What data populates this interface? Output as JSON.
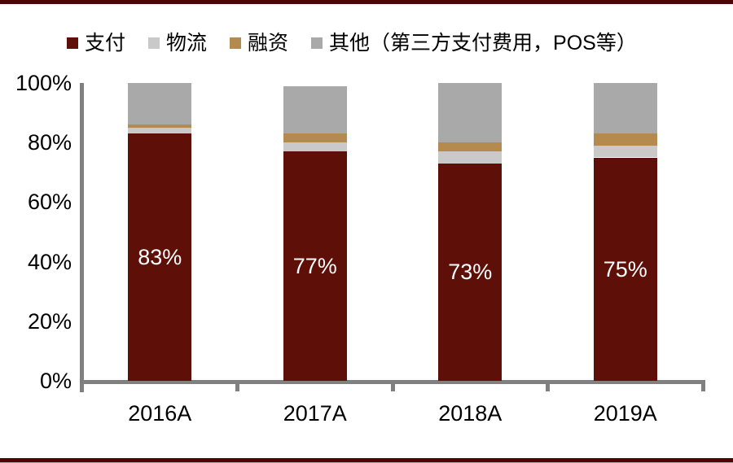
{
  "legend": {
    "items": [
      {
        "label": "支付",
        "color": "#5E0F08"
      },
      {
        "label": "物流",
        "color": "#C9C9C9"
      },
      {
        "label": "融资",
        "color": "#B48A4E"
      },
      {
        "label": "其他（第三方支付费用，POS等）",
        "color": "#A9A9A9"
      }
    ]
  },
  "chart_data": {
    "type": "bar",
    "subtype": "stacked-100-percent",
    "title": "",
    "xlabel": "",
    "ylabel": "",
    "categories": [
      "2016A",
      "2017A",
      "2018A",
      "2019A"
    ],
    "series": [
      {
        "name": "支付",
        "color": "#5E0F08",
        "values": [
          83,
          77,
          73,
          75
        ]
      },
      {
        "name": "物流",
        "color": "#C9C9C9",
        "values": [
          2,
          3,
          4,
          4
        ]
      },
      {
        "name": "融资",
        "color": "#B48A4E",
        "values": [
          1,
          3,
          3,
          4
        ]
      },
      {
        "name": "其他（第三方支付费用，POS等）",
        "color": "#A9A9A9",
        "values": [
          14,
          16,
          20,
          17
        ]
      }
    ],
    "bar_labels": [
      "83%",
      "77%",
      "73%",
      "75%"
    ],
    "bar_labels_on_series": "支付",
    "y_ticks": [
      "0%",
      "20%",
      "40%",
      "60%",
      "80%",
      "100%"
    ],
    "ylim": [
      0,
      100
    ],
    "grid": false,
    "legend_position": "top"
  },
  "colors": {
    "axis": "#808080",
    "page_rule": "#4D0505",
    "bar_label_text": "#FFFFFF"
  }
}
